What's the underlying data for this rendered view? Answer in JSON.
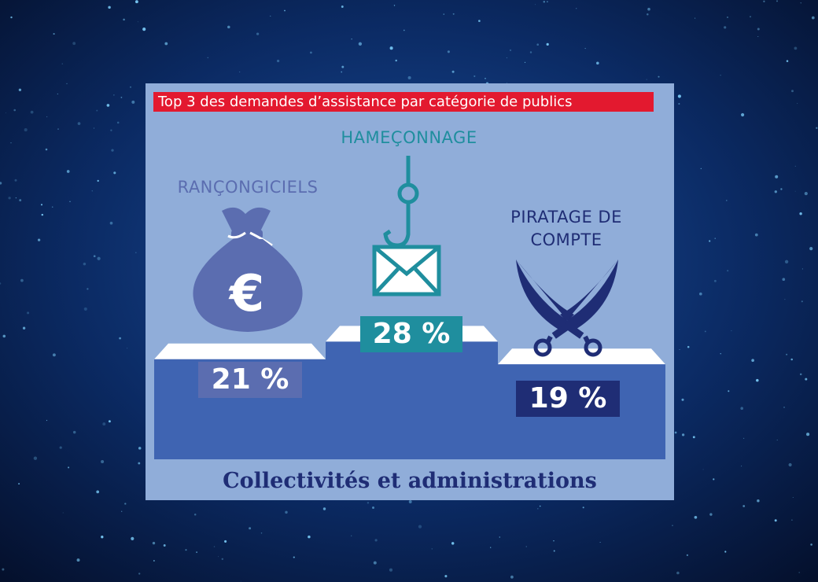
{
  "title": "Top 3 des demandes d’assistance par catégorie de publics",
  "footer": "Collectivités et administrations",
  "colors": {
    "title_bg": "#e3192f",
    "panel": "#90add9",
    "podium_front": "#3f64b2",
    "podium_top": "#ffffff",
    "ransom": "#5b6db0",
    "phishing": "#1f8e9e",
    "hack": "#1f2d75"
  },
  "chart_data": {
    "type": "bar",
    "title": "Top 3 des demandes d’assistance par catégorie de publics",
    "categories": [
      "RANÇONGICIELS",
      "HAMEÇONNAGE",
      "PIRATAGE DE COMPTE"
    ],
    "values": [
      21,
      28,
      19
    ],
    "value_labels": [
      "21 %",
      "28 %",
      "19 %"
    ],
    "unit": "%",
    "icons": [
      "euro-money-bag-icon",
      "fishhook-envelope-icon",
      "crossed-swords-icon"
    ],
    "group": "Collectivités et administrations"
  }
}
